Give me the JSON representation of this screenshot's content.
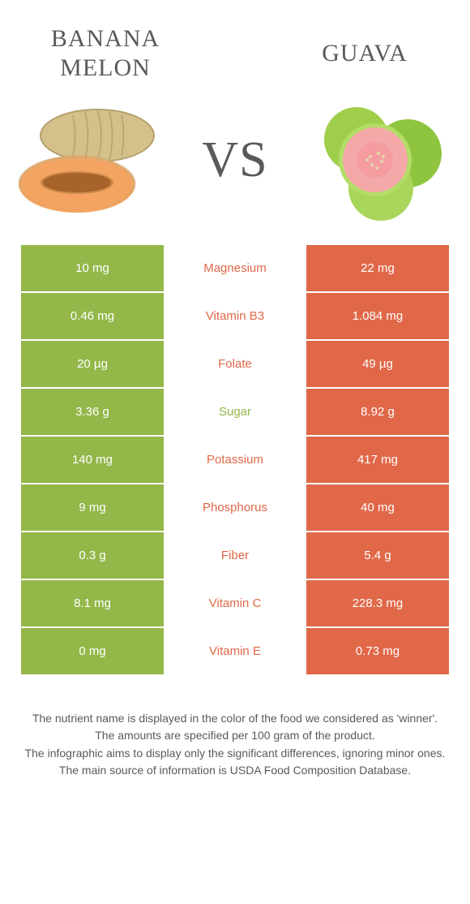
{
  "header": {
    "left_food": "Banana melon",
    "right_food": "Guava",
    "vs": "VS"
  },
  "colors": {
    "left": "#93b749",
    "right": "#e06848",
    "nutrient_left_text": "#93b749",
    "nutrient_right_text": "#e06848",
    "body_text": "#595959",
    "background": "#ffffff"
  },
  "rows": [
    {
      "left": "10 mg",
      "nutrient": "Magnesium",
      "winner": "right",
      "right": "22 mg"
    },
    {
      "left": "0.46 mg",
      "nutrient": "Vitamin B3",
      "winner": "right",
      "right": "1.084 mg"
    },
    {
      "left": "20 µg",
      "nutrient": "Folate",
      "winner": "right",
      "right": "49 µg"
    },
    {
      "left": "3.36 g",
      "nutrient": "Sugar",
      "winner": "left",
      "right": "8.92 g"
    },
    {
      "left": "140 mg",
      "nutrient": "Potassium",
      "winner": "right",
      "right": "417 mg"
    },
    {
      "left": "9 mg",
      "nutrient": "Phosphorus",
      "winner": "right",
      "right": "40 mg"
    },
    {
      "left": "0.3 g",
      "nutrient": "Fiber",
      "winner": "right",
      "right": "5.4 g"
    },
    {
      "left": "8.1 mg",
      "nutrient": "Vitamin C",
      "winner": "right",
      "right": "228.3 mg"
    },
    {
      "left": "0 mg",
      "nutrient": "Vitamin E",
      "winner": "right",
      "right": "0.73 mg"
    }
  ],
  "footer": {
    "line1": "The nutrient name is displayed in the color of the food we considered as 'winner'.",
    "line2": "The amounts are specified per 100 gram of the product.",
    "line3": "The infographic aims to display only the significant differences, ignoring minor ones.",
    "line4": "The main source of information is USDA Food Composition Database."
  }
}
